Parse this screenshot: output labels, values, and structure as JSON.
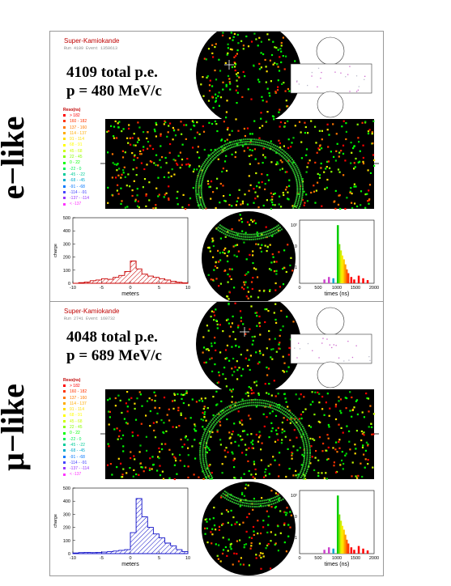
{
  "panels": [
    {
      "side_label": "e−like",
      "side_color": "#e00000",
      "experiment": "Super-Kamiokande",
      "run_info": "Run 4109 Event 1350613",
      "total_pe": "4109 total p.e.",
      "momentum": "p = 480 MeV/c",
      "text_color": "#e00000",
      "histogram_color": "#c80000",
      "charge_histogram": {
        "xlabel": "meters",
        "ylabel": "charge",
        "xticks": [
          "-10",
          "-5",
          "0",
          "5",
          "10"
        ],
        "yticks": [
          "500",
          "400",
          "300",
          "200",
          "100",
          "0"
        ],
        "x": [
          -10,
          -9,
          -8,
          -7,
          -6,
          -5,
          -4,
          -3,
          -2,
          -1,
          0,
          1,
          2,
          3,
          4,
          5,
          6,
          7,
          8,
          9,
          10
        ],
        "values": [
          0,
          5,
          10,
          20,
          25,
          35,
          30,
          45,
          60,
          90,
          170,
          110,
          70,
          55,
          45,
          35,
          25,
          15,
          8,
          4,
          0
        ]
      },
      "time_histogram": {
        "xlabel": "times (ns)",
        "xticks": [
          "0",
          "500",
          "1000",
          "1500",
          "2000"
        ],
        "yticks": [
          "10²",
          "10",
          "1"
        ]
      }
    },
    {
      "side_label": "μ−like",
      "side_color": "#1010ff",
      "experiment": "Super-Kamiokande",
      "run_info": "Run 2741 Event 160732",
      "total_pe": "4048 total p.e.",
      "momentum": "p = 689 MeV/c",
      "text_color": "#1010e0",
      "histogram_color": "#1010c8",
      "charge_histogram": {
        "xlabel": "meters",
        "ylabel": "charge",
        "xticks": [
          "-10",
          "-5",
          "0",
          "5",
          "10"
        ],
        "yticks": [
          "500",
          "400",
          "300",
          "200",
          "100",
          "0"
        ],
        "x": [
          -10,
          -9,
          -8,
          -7,
          -6,
          -5,
          -4,
          -3,
          -2,
          -1,
          0,
          1,
          2,
          3,
          4,
          5,
          6,
          7,
          8,
          9,
          10
        ],
        "values": [
          5,
          8,
          10,
          8,
          10,
          12,
          15,
          20,
          25,
          30,
          160,
          420,
          280,
          200,
          150,
          120,
          80,
          60,
          30,
          15,
          5
        ]
      },
      "time_histogram": {
        "xlabel": "times (ns)",
        "xticks": [
          "0",
          "500",
          "1000",
          "1500",
          "2000"
        ],
        "yticks": [
          "10²",
          "10",
          "1"
        ]
      }
    }
  ],
  "resolution_legend": {
    "title": "Reso(ns)",
    "rows": [
      {
        "label": "> 182",
        "color": "#ff0000"
      },
      {
        "label": "160 - 182",
        "color": "#ff3300"
      },
      {
        "label": "137 - 160",
        "color": "#ff7700"
      },
      {
        "label": "114 - 137",
        "color": "#ffaa00"
      },
      {
        "label": "91 - 114",
        "color": "#ffdd00"
      },
      {
        "label": "68 - 91",
        "color": "#ffff00"
      },
      {
        "label": "45 - 68",
        "color": "#ccff00"
      },
      {
        "label": "22 - 45",
        "color": "#88ff00"
      },
      {
        "label": "0 - 22",
        "color": "#00ff00"
      },
      {
        "label": "-22 - 0",
        "color": "#00ee55"
      },
      {
        "label": "-45 - -22",
        "color": "#00cc99"
      },
      {
        "label": "-68 - -45",
        "color": "#00aacc"
      },
      {
        "label": "-91 - -68",
        "color": "#0077ff"
      },
      {
        "label": "-114 - -91",
        "color": "#4444ff"
      },
      {
        "label": "-137 - -114",
        "color": "#9933ff"
      },
      {
        "label": "< -137",
        "color": "#ff33ff"
      }
    ]
  }
}
